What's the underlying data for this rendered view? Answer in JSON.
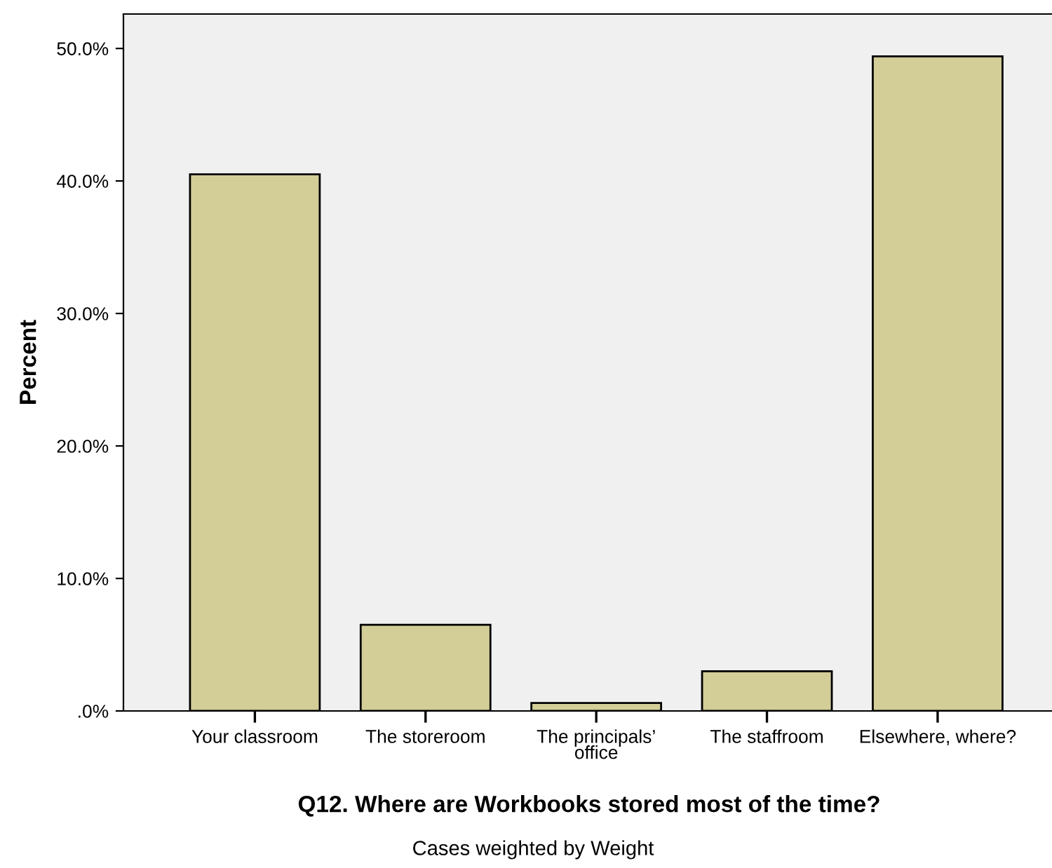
{
  "chart_data": {
    "type": "bar",
    "xlabel": "Q12. Where are Workbooks stored most of the time?",
    "ylabel": "Percent",
    "categories": [
      "Your classroom",
      "The storeroom",
      "The principals’\noffice",
      "The staffroom",
      "Elsewhere, where?"
    ],
    "values": [
      40.5,
      6.5,
      0.6,
      3.0,
      49.4
    ],
    "color": "#d3ce97",
    "ylim": [
      0,
      52.6
    ],
    "yticks": [
      {
        "value": 0,
        "label": ".0%"
      },
      {
        "value": 10,
        "label": "10.0%"
      },
      {
        "value": 20,
        "label": "20.0%"
      },
      {
        "value": 30,
        "label": "30.0%"
      },
      {
        "value": 40,
        "label": "40.0%"
      },
      {
        "value": 50,
        "label": "50.0%"
      }
    ],
    "grid": false,
    "legend": false,
    "annotations": [
      "Cases weighted by Weight"
    ]
  }
}
